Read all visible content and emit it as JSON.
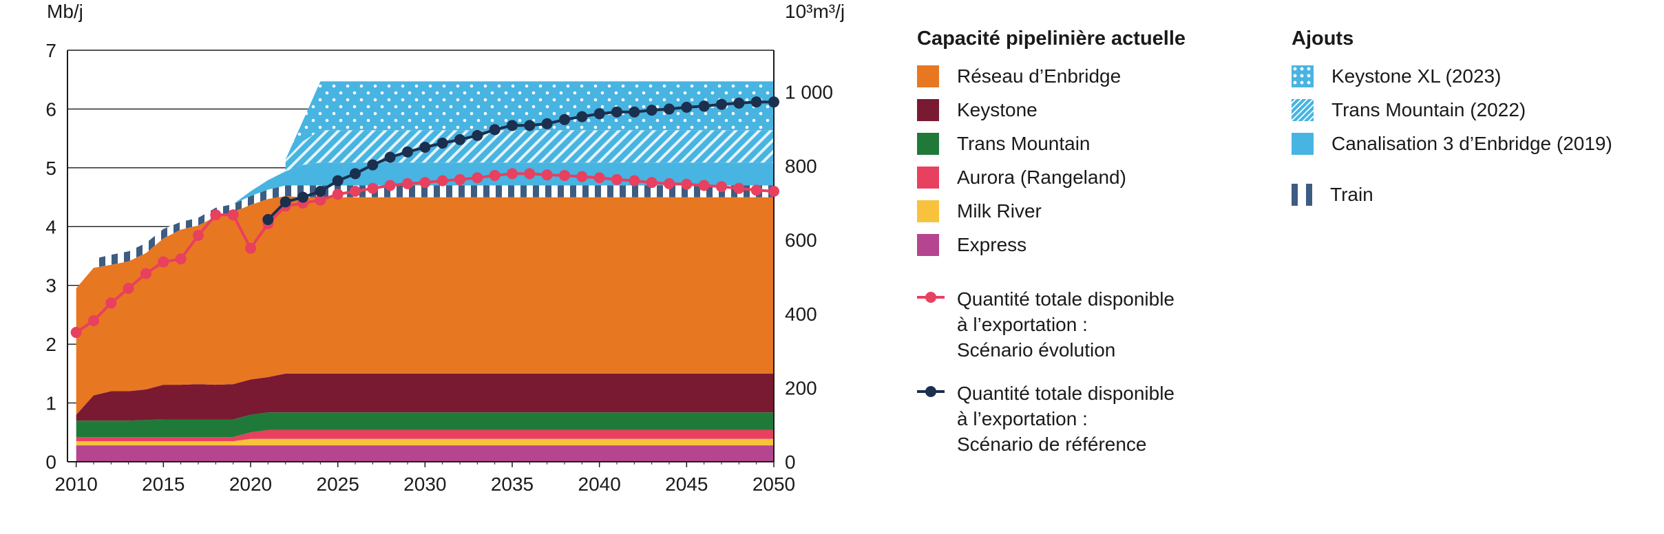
{
  "chart_data": {
    "type": "area",
    "ylabel_left": "Mb/j",
    "ylabel_right": "10³m³/j",
    "ylim": [
      0,
      7
    ],
    "ylim_right_max_units": 1113,
    "xlim": [
      2009.5,
      2050
    ],
    "x_ticks": [
      "2010",
      "2015",
      "2020",
      "2025",
      "2030",
      "2035",
      "2040",
      "2045",
      "2050"
    ],
    "y_ticks": [
      "0",
      "1",
      "2",
      "3",
      "4",
      "5",
      "6",
      "7"
    ],
    "y_ticks_right": [
      {
        "label": "0",
        "value": 0
      },
      {
        "label": "200",
        "value": 200
      },
      {
        "label": "400",
        "value": 400
      },
      {
        "label": "600",
        "value": 600
      },
      {
        "label": "800",
        "value": 800
      },
      {
        "label": "1 000",
        "value": 1000
      }
    ],
    "x": [
      2010,
      2011,
      2012,
      2013,
      2014,
      2015,
      2016,
      2017,
      2018,
      2019,
      2020,
      2021,
      2022,
      2023,
      2024,
      2025,
      2030,
      2035,
      2040,
      2045,
      2050
    ],
    "stacks": [
      {
        "name": "Express",
        "color": "#b5458f",
        "pattern": "none",
        "values": [
          0.28,
          0.28,
          0.28,
          0.28,
          0.28,
          0.28,
          0.28,
          0.28,
          0.28,
          0.28,
          0.28,
          0.28,
          0.28,
          0.28,
          0.28,
          0.28,
          0.28,
          0.28,
          0.28,
          0.28,
          0.28
        ]
      },
      {
        "name": "Milk River",
        "color": "#f9c23c",
        "pattern": "none",
        "values": [
          0.07,
          0.07,
          0.07,
          0.07,
          0.07,
          0.07,
          0.07,
          0.07,
          0.07,
          0.07,
          0.11,
          0.11,
          0.11,
          0.11,
          0.11,
          0.11,
          0.11,
          0.11,
          0.11,
          0.11,
          0.11
        ]
      },
      {
        "name": "Aurora (Rangeland)",
        "color": "#e8405f",
        "pattern": "none",
        "values": [
          0.07,
          0.07,
          0.07,
          0.07,
          0.07,
          0.07,
          0.07,
          0.07,
          0.07,
          0.07,
          0.11,
          0.15,
          0.15,
          0.15,
          0.15,
          0.15,
          0.15,
          0.15,
          0.15,
          0.15,
          0.15
        ]
      },
      {
        "name": "Trans Mountain",
        "color": "#1f7a3a",
        "pattern": "none",
        "values": [
          0.28,
          0.28,
          0.28,
          0.28,
          0.29,
          0.3,
          0.3,
          0.3,
          0.3,
          0.3,
          0.3,
          0.3,
          0.3,
          0.3,
          0.3,
          0.3,
          0.3,
          0.3,
          0.3,
          0.3,
          0.3
        ]
      },
      {
        "name": "Keystone",
        "color": "#7a1a32",
        "pattern": "none",
        "values": [
          0.1,
          0.43,
          0.5,
          0.5,
          0.52,
          0.59,
          0.59,
          0.6,
          0.59,
          0.6,
          0.6,
          0.6,
          0.66,
          0.66,
          0.66,
          0.66,
          0.66,
          0.66,
          0.66,
          0.66,
          0.66
        ]
      },
      {
        "name": "Réseau d’Enbridge",
        "color": "#e87722",
        "pattern": "none",
        "values": [
          2.15,
          2.17,
          2.15,
          2.21,
          2.32,
          2.49,
          2.64,
          2.7,
          2.86,
          2.93,
          2.97,
          3.03,
          3.02,
          3.0,
          3.0,
          3.0,
          3.0,
          3.0,
          3.0,
          3.0,
          3.0
        ]
      },
      {
        "name": "Train",
        "color": "#3d5c82",
        "pattern": "train",
        "start": 2011,
        "values": [
          0,
          0.15,
          0.17,
          0.17,
          0.17,
          0.16,
          0.13,
          0.13,
          0.15,
          0.13,
          0.15,
          0.16,
          0.18,
          0.2,
          0.2,
          0.2,
          0.2,
          0.2,
          0.2,
          0.2,
          0.2
        ]
      },
      {
        "name": "Canalisation 3 d’Enbridge (2019)",
        "color": "#48b4e1",
        "pattern": "none",
        "start": 2019,
        "values": [
          0,
          0,
          0,
          0,
          0,
          0,
          0,
          0,
          0,
          0,
          0.08,
          0.16,
          0.24,
          0.35,
          0.39,
          0.39,
          0.39,
          0.39,
          0.39,
          0.39,
          0.39
        ]
      },
      {
        "name": "Trans Mountain (2022)",
        "color": "#48b4e1",
        "pattern": "hatch",
        "start": 2022,
        "values": [
          0,
          0,
          0,
          0,
          0,
          0,
          0,
          0,
          0,
          0,
          0,
          0,
          0.2,
          0.4,
          0.55,
          0.55,
          0.55,
          0.55,
          0.55,
          0.55,
          0.55
        ]
      },
      {
        "name": "Keystone XL (2023)",
        "color": "#48b4e1",
        "pattern": "dots",
        "start": 2022,
        "values": [
          0,
          0,
          0,
          0,
          0,
          0,
          0,
          0,
          0,
          0,
          0,
          0,
          0,
          0.35,
          0.83,
          0.83,
          0.83,
          0.83,
          0.83,
          0.83,
          0.83
        ]
      }
    ],
    "lines": [
      {
        "name": "Quantité totale disponible à l’exportation : Scénario évolution",
        "color": "#e8405f",
        "x": [
          2010,
          2011,
          2012,
          2013,
          2014,
          2015,
          2016,
          2017,
          2018,
          2019,
          2020,
          2021,
          2022,
          2023,
          2024,
          2025,
          2026,
          2027,
          2028,
          2029,
          2030,
          2031,
          2032,
          2033,
          2034,
          2035,
          2036,
          2037,
          2038,
          2039,
          2040,
          2041,
          2042,
          2043,
          2044,
          2045,
          2046,
          2047,
          2048,
          2049,
          2050
        ],
        "y": [
          2.2,
          2.4,
          2.7,
          2.95,
          3.2,
          3.4,
          3.45,
          3.85,
          4.2,
          4.2,
          3.63,
          4.05,
          4.35,
          4.4,
          4.45,
          4.55,
          4.6,
          4.65,
          4.7,
          4.73,
          4.75,
          4.78,
          4.8,
          4.83,
          4.87,
          4.9,
          4.9,
          4.88,
          4.87,
          4.85,
          4.83,
          4.8,
          4.78,
          4.75,
          4.73,
          4.72,
          4.7,
          4.68,
          4.65,
          4.62,
          4.6
        ]
      },
      {
        "name": "Quantité totale disponible à l’exportation : Scénario de référence",
        "color": "#1b2f4f",
        "x": [
          2021,
          2022,
          2023,
          2024,
          2025,
          2026,
          2027,
          2028,
          2029,
          2030,
          2031,
          2032,
          2033,
          2034,
          2035,
          2036,
          2037,
          2038,
          2039,
          2040,
          2041,
          2042,
          2043,
          2044,
          2045,
          2046,
          2047,
          2048,
          2049,
          2050
        ],
        "y": [
          4.12,
          4.42,
          4.5,
          4.6,
          4.78,
          4.9,
          5.05,
          5.18,
          5.27,
          5.35,
          5.42,
          5.48,
          5.55,
          5.65,
          5.72,
          5.72,
          5.75,
          5.82,
          5.87,
          5.92,
          5.95,
          5.95,
          5.98,
          6.0,
          6.03,
          6.05,
          6.08,
          6.1,
          6.12,
          6.12
        ]
      }
    ]
  },
  "legend": {
    "current_title": "Capacité pipelinière actuelle",
    "current_items": [
      {
        "label": "Réseau d’Enbridge",
        "color": "#e87722"
      },
      {
        "label": "Keystone",
        "color": "#7a1a32"
      },
      {
        "label": "Trans Mountain",
        "color": "#1f7a3a"
      },
      {
        "label": "Aurora (Rangeland)",
        "color": "#e8405f"
      },
      {
        "label": "Milk River",
        "color": "#f9c23c"
      },
      {
        "label": "Express",
        "color": "#b5458f"
      }
    ],
    "line_items": [
      {
        "label": "Quantité totale disponible\nà l’exportation :\nScénario évolution",
        "color": "#e8405f"
      },
      {
        "label": "Quantité totale disponible\nà l’exportation :\nScénario de référence",
        "color": "#1b2f4f"
      }
    ],
    "additions_title": "Ajouts",
    "additions_items": [
      {
        "label": "Keystone XL (2023)",
        "color": "#48b4e1",
        "pattern": "dots"
      },
      {
        "label": "Trans Mountain (2022)",
        "color": "#48b4e1",
        "pattern": "hatch"
      },
      {
        "label": "Canalisation 3 d’Enbridge (2019)",
        "color": "#48b4e1",
        "pattern": "none"
      }
    ],
    "train_item": {
      "label": "Train",
      "color": "#3d5c82",
      "pattern": "train"
    }
  }
}
